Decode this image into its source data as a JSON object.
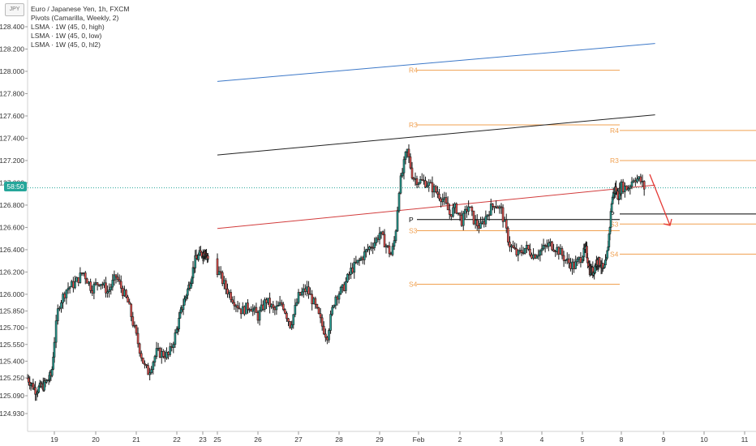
{
  "symbol_badge": "JPY",
  "legend": [
    "Euro / Japanese Yen, 1h, FXCM",
    "Pivots (Camarilla, Weekly, 2)",
    "LSMA · 1W (45, 0, high)",
    "LSMA · 1W (45, 0, low)",
    "LSMA · 1W (45, 0, hl2)"
  ],
  "price_tag": "58:50",
  "colors": {
    "up": "#26a69a",
    "down": "#ef5350",
    "candle": "#1a1a1a",
    "pivot_orange": "#f0a050",
    "pivot_line": "#000000",
    "lsma_high": "#3c78c8",
    "lsma_low": "#d23c3c",
    "lsma_hl2": "#222222",
    "arrow": "#e53935",
    "tag": "#26a69a"
  },
  "chart_data": {
    "type": "candlestick",
    "y_ticks": [
      "128.400",
      "128.200",
      "128.000",
      "127.800",
      "127.600",
      "127.400",
      "127.200",
      "127.000",
      "126.800",
      "126.600",
      "126.400",
      "126.200",
      "126.000",
      "125.850",
      "125.700",
      "125.550",
      "125.400",
      "125.250",
      "125.090",
      "124.930"
    ],
    "x_ticks": [
      "19",
      "20",
      "21",
      "22",
      "23",
      "25",
      "26",
      "27",
      "28",
      "29",
      "Feb",
      "2",
      "3",
      "4",
      "5",
      "8",
      "9",
      "10",
      "11"
    ],
    "ylim": [
      124.8,
      128.6
    ],
    "current_price": 126.955,
    "pivots_week1": [
      {
        "label": "R4",
        "value": 128.01
      },
      {
        "label": "R3",
        "value": 127.52
      },
      {
        "label": "P",
        "value": 126.67
      },
      {
        "label": "S3",
        "value": 126.57
      },
      {
        "label": "S4",
        "value": 126.09
      }
    ],
    "pivots_week2": [
      {
        "label": "R4",
        "value": 127.47
      },
      {
        "label": "R3",
        "value": 127.2
      },
      {
        "label": "P",
        "value": 126.72
      },
      {
        "label": "S3",
        "value": 126.63
      },
      {
        "label": "S4",
        "value": 126.36
      }
    ],
    "lsma_high": [
      [
        25,
        127.91
      ],
      [
        8.8,
        128.25
      ]
    ],
    "lsma_hl2": [
      [
        25,
        127.25
      ],
      [
        8.8,
        127.61
      ]
    ],
    "lsma_low": [
      [
        25,
        126.59
      ],
      [
        8.8,
        126.98
      ]
    ],
    "close_path": [
      [
        18.0,
        125.25
      ],
      [
        18.3,
        125.14
      ],
      [
        18.6,
        125.18
      ],
      [
        18.9,
        125.28
      ],
      [
        19.1,
        125.9
      ],
      [
        19.3,
        126.05
      ],
      [
        19.5,
        126.1
      ],
      [
        19.7,
        126.2
      ],
      [
        19.9,
        126.05
      ],
      [
        20.1,
        126.12
      ],
      [
        20.3,
        126.02
      ],
      [
        20.5,
        126.16
      ],
      [
        20.8,
        125.92
      ],
      [
        21.0,
        125.62
      ],
      [
        21.2,
        125.35
      ],
      [
        21.3,
        125.3
      ],
      [
        21.5,
        125.48
      ],
      [
        21.8,
        125.45
      ],
      [
        22.0,
        125.68
      ],
      [
        22.2,
        125.88
      ],
      [
        22.5,
        126.1
      ],
      [
        22.7,
        126.3
      ],
      [
        22.9,
        126.36
      ],
      [
        23.2,
        126.38
      ],
      [
        23.5,
        126.34
      ],
      [
        23.7,
        126.32
      ],
      [
        25.0,
        126.22
      ],
      [
        25.2,
        126.06
      ],
      [
        25.4,
        125.95
      ],
      [
        25.6,
        125.85
      ],
      [
        25.8,
        125.9
      ],
      [
        26.0,
        125.8
      ],
      [
        26.2,
        125.95
      ],
      [
        26.4,
        125.85
      ],
      [
        26.6,
        125.92
      ],
      [
        26.8,
        125.72
      ],
      [
        27.0,
        125.98
      ],
      [
        27.2,
        126.05
      ],
      [
        27.4,
        125.9
      ],
      [
        27.6,
        125.7
      ],
      [
        27.7,
        125.62
      ],
      [
        27.9,
        125.98
      ],
      [
        28.1,
        126.05
      ],
      [
        28.3,
        126.22
      ],
      [
        28.5,
        126.3
      ],
      [
        28.7,
        126.4
      ],
      [
        28.9,
        126.48
      ],
      [
        29.0,
        126.55
      ],
      [
        29.15,
        126.45
      ],
      [
        29.3,
        126.35
      ],
      [
        29.4,
        126.52
      ],
      [
        29.5,
        126.95
      ],
      [
        29.6,
        127.12
      ],
      [
        29.7,
        127.3
      ],
      [
        29.85,
        127.05
      ],
      [
        30.0,
        127.02
      ],
      [
        30.2,
        127.0
      ],
      [
        30.4,
        126.93
      ],
      [
        30.6,
        126.85
      ],
      [
        30.75,
        126.72
      ],
      [
        30.9,
        126.78
      ],
      [
        31.05,
        126.65
      ],
      [
        31.2,
        126.8
      ],
      [
        31.35,
        126.65
      ],
      [
        31.5,
        126.6
      ],
      [
        31.7,
        126.75
      ],
      [
        31.85,
        126.82
      ],
      [
        32.0,
        126.75
      ],
      [
        32.2,
        126.45
      ],
      [
        32.4,
        126.35
      ],
      [
        32.6,
        126.42
      ],
      [
        32.8,
        126.35
      ],
      [
        33.0,
        126.4
      ],
      [
        33.2,
        126.45
      ],
      [
        33.4,
        126.4
      ],
      [
        33.6,
        126.3
      ],
      [
        33.8,
        126.25
      ],
      [
        34.0,
        126.35
      ],
      [
        34.2,
        126.4
      ],
      [
        34.4,
        126.22
      ],
      [
        34.6,
        126.2
      ],
      [
        34.8,
        126.3
      ],
      [
        35.0,
        126.28
      ],
      [
        35.15,
        126.2
      ],
      [
        35.3,
        126.3
      ],
      [
        35.45,
        126.6
      ],
      [
        35.55,
        126.85
      ],
      [
        35.7,
        126.95
      ],
      [
        35.85,
        126.88
      ],
      [
        36.0,
        126.97
      ],
      [
        36.15,
        126.95
      ],
      [
        36.3,
        127.05
      ],
      [
        36.45,
        127.02
      ],
      [
        36.55,
        126.95
      ]
    ]
  }
}
